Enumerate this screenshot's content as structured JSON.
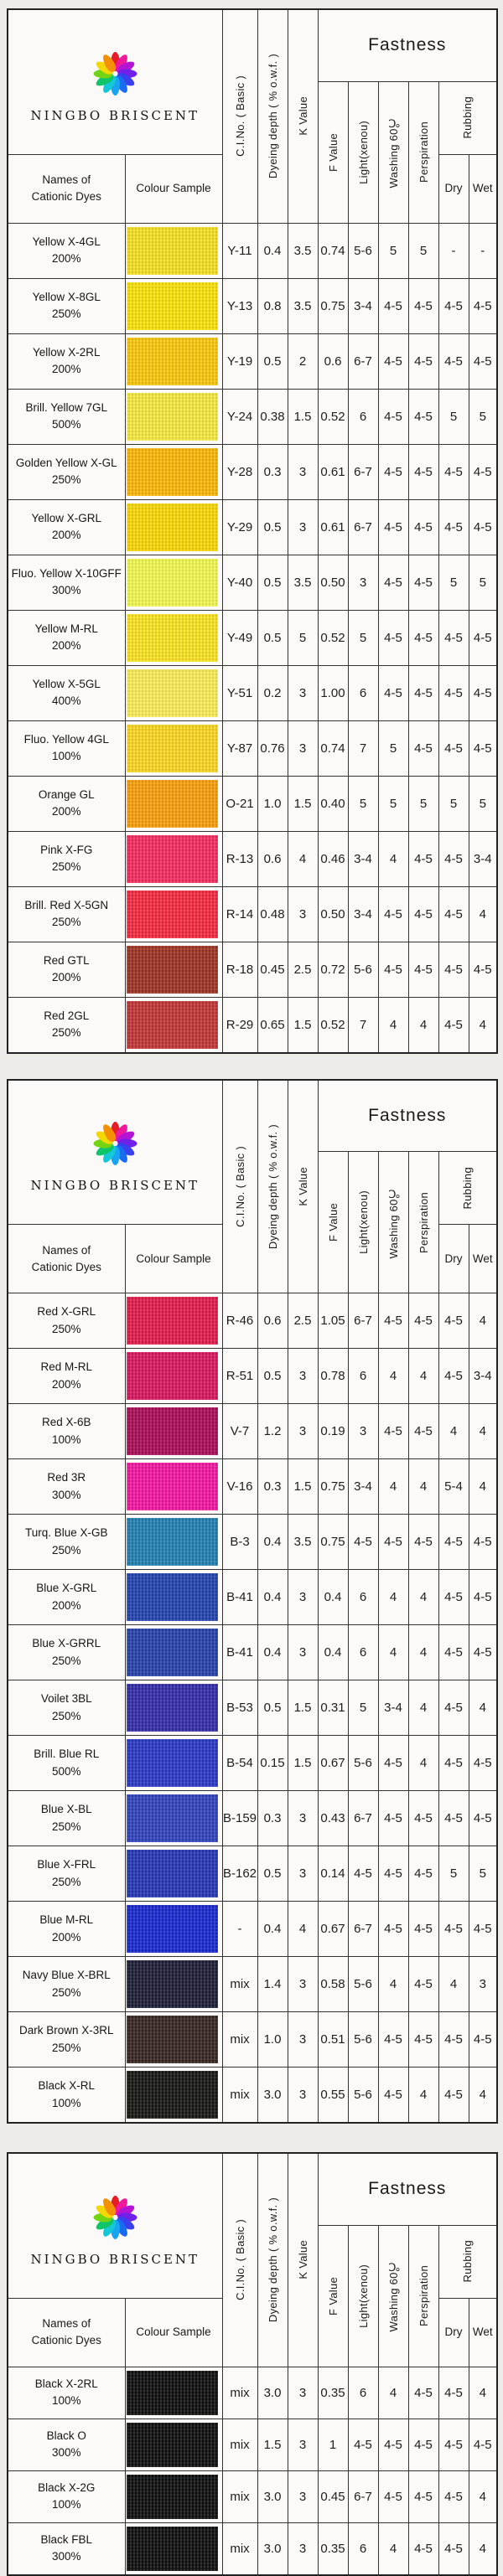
{
  "company": "NINGBO BRISCENT",
  "logo": {
    "petal_colors": [
      "#e81c24",
      "#f0189c",
      "#b414d4",
      "#7020e8",
      "#3840f0",
      "#1a6af2",
      "#18a4f0",
      "#14c8d8",
      "#10c46a",
      "#74d414",
      "#f4d802",
      "#f49004"
    ]
  },
  "headers": {
    "names_line1": "Names of",
    "names_line2": "Cationic Dyes",
    "colour_sample": "Colour Sample",
    "ci_no": "C.I.No. ( Basic )",
    "dyeing_depth": "Dyeing depth ( % o.w.f. )",
    "k_value": "K Value",
    "fastness": "Fastness",
    "f_value": "F Value",
    "light": "Light(xenou)",
    "washing": "Washing 60℃",
    "perspiration": "Perspiration",
    "rubbing": "Rubbing",
    "dry": "Dry",
    "wet": "Wet"
  },
  "tables": [
    {
      "rows": [
        {
          "name": "Yellow X-4GL",
          "pct": "200%",
          "color": "#f5e01e",
          "ci": "Y-11",
          "depth": "0.4",
          "k": "3.5",
          "f": "0.74",
          "light": "5-6",
          "washing": "5",
          "persp": "5",
          "dry": "-",
          "wet": "-"
        },
        {
          "name": "Yellow X-8GL",
          "pct": "250%",
          "color": "#fbe206",
          "ci": "Y-13",
          "depth": "0.8",
          "k": "3.5",
          "f": "0.75",
          "light": "3-4",
          "washing": "4-5",
          "persp": "4-5",
          "dry": "4-5",
          "wet": "4-5"
        },
        {
          "name": "Yellow X-2RL",
          "pct": "200%",
          "color": "#fbc808",
          "ci": "Y-19",
          "depth": "0.5",
          "k": "2",
          "f": "0.6",
          "light": "6-7",
          "washing": "4-5",
          "persp": "4-5",
          "dry": "4-5",
          "wet": "4-5"
        },
        {
          "name": "Brill. Yellow 7GL",
          "pct": "500%",
          "color": "#f7ea3e",
          "ci": "Y-24",
          "depth": "0.38",
          "k": "1.5",
          "f": "0.52",
          "light": "6",
          "washing": "4-5",
          "persp": "4-5",
          "dry": "5",
          "wet": "5"
        },
        {
          "name": "Golden Yellow X-GL",
          "pct": "250%",
          "color": "#fbb705",
          "ci": "Y-28",
          "depth": "0.3",
          "k": "3",
          "f": "0.61",
          "light": "6-7",
          "washing": "4-5",
          "persp": "4-5",
          "dry": "4-5",
          "wet": "4-5"
        },
        {
          "name": "Yellow X-GRL",
          "pct": "200%",
          "color": "#fbd804",
          "ci": "Y-29",
          "depth": "0.5",
          "k": "3",
          "f": "0.61",
          "light": "6-7",
          "washing": "4-5",
          "persp": "4-5",
          "dry": "4-5",
          "wet": "4-5"
        },
        {
          "name": "Fluo. Yellow X-10GFF",
          "pct": "300%",
          "color": "#f1f94e",
          "ci": "Y-40",
          "depth": "0.5",
          "k": "3.5",
          "f": "0.50",
          "light": "3",
          "washing": "4-5",
          "persp": "4-5",
          "dry": "5",
          "wet": "5"
        },
        {
          "name": "Yellow M-RL",
          "pct": "200%",
          "color": "#fbe41e",
          "ci": "Y-49",
          "depth": "0.5",
          "k": "5",
          "f": "0.52",
          "light": "5",
          "washing": "4-5",
          "persp": "4-5",
          "dry": "4-5",
          "wet": "4-5"
        },
        {
          "name": "Yellow X-5GL",
          "pct": "400%",
          "color": "#f9ed55",
          "ci": "Y-51",
          "depth": "0.2",
          "k": "3",
          "f": "1.00",
          "light": "6",
          "washing": "4-5",
          "persp": "4-5",
          "dry": "4-5",
          "wet": "4-5"
        },
        {
          "name": "Fluo. Yellow 4GL",
          "pct": "100%",
          "color": "#fbd71f",
          "ci": "Y-87",
          "depth": "0.76",
          "k": "3",
          "f": "0.74",
          "light": "7",
          "washing": "5",
          "persp": "4-5",
          "dry": "4-5",
          "wet": "4-5"
        },
        {
          "name": "Orange GL",
          "pct": "200%",
          "color": "#fa9e08",
          "ci": "O-21",
          "depth": "1.0",
          "k": "1.5",
          "f": "0.40",
          "light": "5",
          "washing": "5",
          "persp": "5",
          "dry": "5",
          "wet": "5"
        },
        {
          "name": "Pink X-FG",
          "pct": "250%",
          "color": "#f72a5e",
          "ci": "R-13",
          "depth": "0.6",
          "k": "4",
          "f": "0.46",
          "light": "3-4",
          "washing": "4",
          "persp": "4-5",
          "dry": "4-5",
          "wet": "3-4"
        },
        {
          "name": "Brill. Red X-5GN",
          "pct": "250%",
          "color": "#f42840",
          "ci": "R-14",
          "depth": "0.48",
          "k": "3",
          "f": "0.50",
          "light": "3-4",
          "washing": "4-5",
          "persp": "4-5",
          "dry": "4-5",
          "wet": "4"
        },
        {
          "name": "Red GTL",
          "pct": "200%",
          "color": "#9c3222",
          "ci": "R-18",
          "depth": "0.45",
          "k": "2.5",
          "f": "0.72",
          "light": "5-6",
          "washing": "4-5",
          "persp": "4-5",
          "dry": "4-5",
          "wet": "4-5"
        },
        {
          "name": "Red  2GL",
          "pct": "250%",
          "color": "#c23434",
          "ci": "R-29",
          "depth": "0.65",
          "k": "1.5",
          "f": "0.52",
          "light": "7",
          "washing": "4",
          "persp": "4",
          "dry": "4-5",
          "wet": "4"
        }
      ]
    },
    {
      "rows": [
        {
          "name": "Red X-GRL",
          "pct": "250%",
          "color": "#e2194a",
          "ci": "R-46",
          "depth": "0.6",
          "k": "2.5",
          "f": "1.05",
          "light": "6-7",
          "washing": "4-5",
          "persp": "4-5",
          "dry": "4-5",
          "wet": "4"
        },
        {
          "name": "Red M-RL",
          "pct": "200%",
          "color": "#d8155e",
          "ci": "R-51",
          "depth": "0.5",
          "k": "3",
          "f": "0.78",
          "light": "6",
          "washing": "4",
          "persp": "4",
          "dry": "4-5",
          "wet": "3-4"
        },
        {
          "name": "Red X-6B",
          "pct": "100%",
          "color": "#a90b56",
          "ci": "V-7",
          "depth": "1.2",
          "k": "3",
          "f": "0.19",
          "light": "3",
          "washing": "4-5",
          "persp": "4-5",
          "dry": "4",
          "wet": "4"
        },
        {
          "name": "Red 3R",
          "pct": "300%",
          "color": "#f314a2",
          "ci": "V-16",
          "depth": "0.3",
          "k": "1.5",
          "f": "0.75",
          "light": "3-4",
          "washing": "4",
          "persp": "4",
          "dry": "5-4",
          "wet": "4"
        },
        {
          "name": "Turq. Blue X-GB",
          "pct": "250%",
          "color": "#1f7fb0",
          "ci": "B-3",
          "depth": "0.4",
          "k": "3.5",
          "f": "0.75",
          "light": "4-5",
          "washing": "4-5",
          "persp": "4-5",
          "dry": "4-5",
          "wet": "4-5"
        },
        {
          "name": "Blue  X-GRL",
          "pct": "200%",
          "color": "#2142af",
          "ci": "B-41",
          "depth": "0.4",
          "k": "3",
          "f": "0.4",
          "light": "6",
          "washing": "4",
          "persp": "4",
          "dry": "4-5",
          "wet": "4-5"
        },
        {
          "name": "Blue  X-GRRL",
          "pct": "250%",
          "color": "#2440a9",
          "ci": "B-41",
          "depth": "0.4",
          "k": "3",
          "f": "0.4",
          "light": "6",
          "washing": "4",
          "persp": "4",
          "dry": "4-5",
          "wet": "4-5"
        },
        {
          "name": "Voilet  3BL",
          "pct": "250%",
          "color": "#312ba6",
          "ci": "B-53",
          "depth": "0.5",
          "k": "1.5",
          "f": "0.31",
          "light": "5",
          "washing": "3-4",
          "persp": "4",
          "dry": "4-5",
          "wet": "4"
        },
        {
          "name": "Brill. Blue RL",
          "pct": "500%",
          "color": "#2737c6",
          "ci": "B-54",
          "depth": "0.15",
          "k": "1.5",
          "f": "0.67",
          "light": "5-6",
          "washing": "4-5",
          "persp": "4",
          "dry": "4-5",
          "wet": "4-5"
        },
        {
          "name": "Blue X-BL",
          "pct": "250%",
          "color": "#2d42bd",
          "ci": "B-159",
          "depth": "0.3",
          "k": "3",
          "f": "0.43",
          "light": "6-7",
          "washing": "4-5",
          "persp": "4-5",
          "dry": "4-5",
          "wet": "4-5"
        },
        {
          "name": "Blue X-FRL",
          "pct": "250%",
          "color": "#2336b4",
          "ci": "B-162",
          "depth": "0.5",
          "k": "3",
          "f": "0.14",
          "light": "4-5",
          "washing": "4-5",
          "persp": "4-5",
          "dry": "5",
          "wet": "5"
        },
        {
          "name": "Blue M-RL",
          "pct": "200%",
          "color": "#1727cf",
          "ci": "-",
          "depth": "0.4",
          "k": "4",
          "f": "0.67",
          "light": "6-7",
          "washing": "4-5",
          "persp": "4-5",
          "dry": "4-5",
          "wet": "4-5"
        },
        {
          "name": "Navy Blue X-BRL",
          "pct": "250%",
          "color": "#1a1c35",
          "ci": "mix",
          "depth": "1.4",
          "k": "3",
          "f": "0.58",
          "light": "5-6",
          "washing": "4",
          "persp": "4-5",
          "dry": "4",
          "wet": "3"
        },
        {
          "name": "Dark Brown X-3RL",
          "pct": "250%",
          "color": "#352521",
          "ci": "mix",
          "depth": "1.0",
          "k": "3",
          "f": "0.51",
          "light": "5-6",
          "washing": "4-5",
          "persp": "4-5",
          "dry": "4-5",
          "wet": "4-5"
        },
        {
          "name": "Black  X-RL",
          "pct": "100%",
          "color": "#151510",
          "ci": "mix",
          "depth": "3.0",
          "k": "3",
          "f": "0.55",
          "light": "5-6",
          "washing": "4-5",
          "persp": "4",
          "dry": "4-5",
          "wet": "4"
        }
      ]
    },
    {
      "rows": [
        {
          "name": "Black X-2RL",
          "pct": "100%",
          "color": "#0d0d0d",
          "ci": "mix",
          "depth": "3.0",
          "k": "3",
          "f": "0.35",
          "light": "6",
          "washing": "4",
          "persp": "4-5",
          "dry": "4-5",
          "wet": "4"
        },
        {
          "name": "Black O",
          "pct": "300%",
          "color": "#0d0d0d",
          "ci": "mix",
          "depth": "1.5",
          "k": "3",
          "f": "1",
          "light": "4-5",
          "washing": "4-5",
          "persp": "4-5",
          "dry": "4-5",
          "wet": "4-5"
        },
        {
          "name": "Black X-2G",
          "pct": "100%",
          "color": "#0d0d0d",
          "ci": "mix",
          "depth": "3.0",
          "k": "3",
          "f": "0.45",
          "light": "6-7",
          "washing": "4-5",
          "persp": "4-5",
          "dry": "4-5",
          "wet": "4"
        },
        {
          "name": "Black FBL",
          "pct": "300%",
          "color": "#0d0d0d",
          "ci": "mix",
          "depth": "3.0",
          "k": "3",
          "f": "0.35",
          "light": "6",
          "washing": "4",
          "persp": "4-5",
          "dry": "4-5",
          "wet": "4"
        }
      ]
    }
  ]
}
